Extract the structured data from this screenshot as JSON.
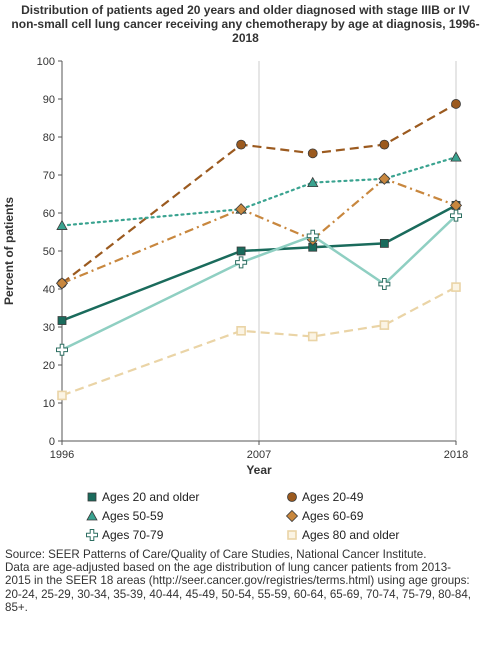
{
  "chart_data": {
    "type": "line",
    "title_lines": [
      "Distribution of patients aged 20 years and older diagnosed with stage IIIB or IV",
      "non-small cell lung cancer receiving any chemotherapy  by age at diagnosis, 1996-",
      "2018"
    ],
    "xlabel": "Year",
    "ylabel": "Percent of patients",
    "x_tick_labels": [
      "1996",
      "2007",
      "2018"
    ],
    "xlim": [
      1996,
      2018
    ],
    "ylim": [
      0,
      100
    ],
    "y_ticks": [
      0,
      10,
      20,
      30,
      40,
      50,
      60,
      70,
      80,
      90,
      100
    ],
    "grid": "vertical gridlines at x ticks",
    "legend_position": "bottom",
    "series": [
      {
        "name": "Ages 20 and older",
        "color": "#1a6b5c",
        "marker": "square",
        "line": "solid",
        "points": [
          [
            1996,
            31.7
          ],
          [
            2006,
            50.0
          ],
          [
            2010,
            51.0
          ],
          [
            2014,
            52.0
          ],
          [
            2018,
            62.0
          ]
        ]
      },
      {
        "name": "Ages 20-49",
        "color": "#9b5a1f",
        "marker": "circle",
        "line": "dashed",
        "points": [
          [
            1996,
            41.5
          ],
          [
            2006,
            78.0
          ],
          [
            2010,
            75.7
          ],
          [
            2014,
            78.0
          ],
          [
            2018,
            88.7
          ]
        ]
      },
      {
        "name": "Ages 50-59",
        "color": "#3aa390",
        "marker": "triangle",
        "line": "dotted",
        "points": [
          [
            1996,
            56.7
          ],
          [
            2006,
            61.0
          ],
          [
            2010,
            68.0
          ],
          [
            2014,
            69.0
          ],
          [
            2018,
            74.7
          ]
        ]
      },
      {
        "name": "Ages 60-69",
        "color": "#c8873e",
        "marker": "diamond",
        "line": "dashdot",
        "points": [
          [
            1996,
            41.5
          ],
          [
            2006,
            61.0
          ],
          [
            2010,
            53.0
          ],
          [
            2014,
            69.0
          ],
          [
            2018,
            62.0
          ]
        ]
      },
      {
        "name": "Ages 70-79",
        "color": "#8fcfc2",
        "marker": "plus",
        "line": "solid",
        "points": [
          [
            1996,
            24.0
          ],
          [
            2006,
            47.0
          ],
          [
            2010,
            54.0
          ],
          [
            2014,
            41.3
          ],
          [
            2018,
            59.3
          ]
        ]
      },
      {
        "name": "Ages 80 and older",
        "color": "#ead4a6",
        "marker": "open-square",
        "line": "dashed",
        "points": [
          [
            1996,
            12.0
          ],
          [
            2006,
            29.0
          ],
          [
            2010,
            27.5
          ],
          [
            2014,
            30.5
          ],
          [
            2018,
            40.5
          ]
        ]
      }
    ]
  },
  "source_lines": [
    "Source: SEER Patterns of Care/Quality of Care Studies, National Cancer Institute.",
    "Data are age-adjusted based on the age distribution of lung cancer patients from 2013-",
    "2015 in the SEER 18 areas (http://seer.cancer.gov/registries/terms.html) using age groups:",
    "20-24, 25-29, 30-34, 35-39, 40-44, 45-49, 50-54, 55-59, 60-64, 65-69, 70-74, 75-79, 80-84,",
    "85+."
  ]
}
